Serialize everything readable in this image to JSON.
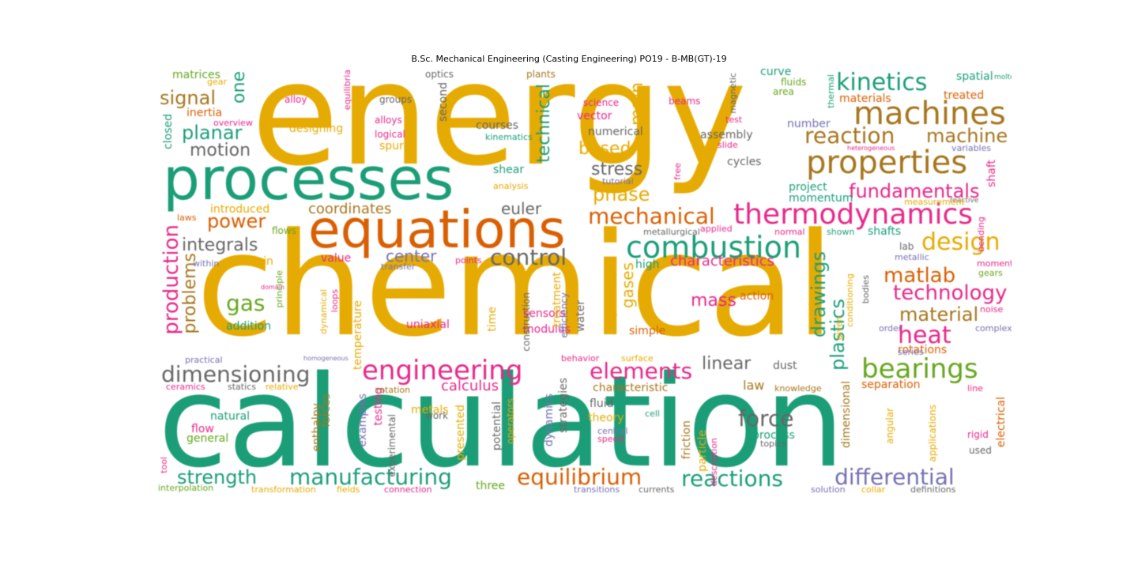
{
  "title": "B.Sc. Mechanical Engineering (Casting Engineering)  PO19 - B-MB(GT)-19",
  "palette": {
    "teal": "#1b9e77",
    "orange": "#d95f02",
    "purple": "#7570b3",
    "pink": "#e7298a",
    "green": "#66a61e",
    "gold": "#e6ab02",
    "brown": "#a6761d",
    "gray": "#666666"
  },
  "words": [
    {
      "text": "energy",
      "color": "#e6ab02"
    },
    {
      "text": "chemical",
      "color": "#e6ab02"
    },
    {
      "text": "calculation",
      "color": "#1b9e77"
    },
    {
      "text": "processes",
      "color": "#1b9e77"
    },
    {
      "text": "equations",
      "color": "#d95f02"
    },
    {
      "text": "machines",
      "color": "#a6761d"
    },
    {
      "text": "properties",
      "color": "#a6761d"
    },
    {
      "text": "kinetics",
      "color": "#1b9e77"
    },
    {
      "text": "thermodynamics",
      "color": "#e7298a"
    },
    {
      "text": "combustion",
      "color": "#1b9e77"
    },
    {
      "text": "reaction",
      "color": "#a6761d"
    },
    {
      "text": "machine",
      "color": "#a6761d"
    },
    {
      "text": "fundamentals",
      "color": "#e7298a"
    },
    {
      "text": "engineering",
      "color": "#e7298a"
    },
    {
      "text": "bearings",
      "color": "#66a61e"
    },
    {
      "text": "differential",
      "color": "#7570b3"
    },
    {
      "text": "equilibrium",
      "color": "#d95f02"
    },
    {
      "text": "manufacturing",
      "color": "#1b9e77"
    },
    {
      "text": "reactions",
      "color": "#1b9e77"
    },
    {
      "text": "design",
      "color": "#e6ab02"
    },
    {
      "text": "matlab",
      "color": "#d95f02"
    },
    {
      "text": "technology",
      "color": "#e7298a"
    },
    {
      "text": "mechanical",
      "color": "#d95f02"
    },
    {
      "text": "production",
      "color": "#e7298a"
    },
    {
      "text": "dimensioning",
      "color": "#666666"
    },
    {
      "text": "elements",
      "color": "#e7298a"
    },
    {
      "text": "heat",
      "color": "#e7298a"
    },
    {
      "text": "material",
      "color": "#a6761d"
    },
    {
      "text": "plastics",
      "color": "#1b9e77"
    },
    {
      "text": "drawings",
      "color": "#1b9e77"
    },
    {
      "text": "control",
      "color": "#666666"
    },
    {
      "text": "strength",
      "color": "#1b9e77"
    },
    {
      "text": "force",
      "color": "#666666"
    },
    {
      "text": "signal",
      "color": "#a6761d"
    },
    {
      "text": "planar",
      "color": "#1b9e77"
    },
    {
      "text": "motion",
      "color": "#666666"
    },
    {
      "text": "phase",
      "color": "#e6ab02"
    },
    {
      "text": "based",
      "color": "#e6ab02"
    },
    {
      "text": "stress",
      "color": "#666666"
    },
    {
      "text": "technical",
      "color": "#1b9e77"
    },
    {
      "text": "main",
      "color": "#e6ab02"
    },
    {
      "text": "gas",
      "color": "#66a61e"
    },
    {
      "text": "power",
      "color": "#d95f02"
    },
    {
      "text": "integrals",
      "color": "#666666"
    },
    {
      "text": "problems",
      "color": "#a6761d"
    },
    {
      "text": "coordinates",
      "color": "#a6761d"
    },
    {
      "text": "euler",
      "color": "#666666"
    },
    {
      "text": "center",
      "color": "#7570b3"
    },
    {
      "text": "mass",
      "color": "#e7298a"
    },
    {
      "text": "gases",
      "color": "#e6ab02"
    },
    {
      "text": "linear",
      "color": "#666666"
    },
    {
      "text": "calculus",
      "color": "#e7298a"
    },
    {
      "text": "characteristics",
      "color": "#e7298a"
    },
    {
      "text": "one",
      "color": "#1b9e77"
    },
    {
      "text": "matrices",
      "color": "#66a61e"
    },
    {
      "text": "inertia",
      "color": "#d95f02"
    },
    {
      "text": "shear",
      "color": "#1b9e77"
    },
    {
      "text": "spur",
      "color": "#e6ab02"
    },
    {
      "text": "courses",
      "color": "#666666"
    },
    {
      "text": "vector",
      "color": "#e7298a"
    },
    {
      "text": "numerical",
      "color": "#666666"
    },
    {
      "text": "assembly",
      "color": "#666666"
    },
    {
      "text": "cycles",
      "color": "#666666"
    },
    {
      "text": "designing",
      "color": "#e6ab02"
    },
    {
      "text": "project",
      "color": "#1b9e77"
    },
    {
      "text": "momentum",
      "color": "#1b9e77"
    },
    {
      "text": "shafts",
      "color": "#1b9e77"
    },
    {
      "text": "shaft",
      "color": "#e7298a"
    },
    {
      "text": "spatial",
      "color": "#1b9e77"
    },
    {
      "text": "treated",
      "color": "#d95f02"
    },
    {
      "text": "materials",
      "color": "#d95f02"
    },
    {
      "text": "curve",
      "color": "#1b9e77"
    },
    {
      "text": "number",
      "color": "#7570b3"
    },
    {
      "text": "fluids",
      "color": "#66a61e"
    },
    {
      "text": "area",
      "color": "#66a61e"
    },
    {
      "text": "uniaxial",
      "color": "#e7298a"
    },
    {
      "text": "modulus",
      "color": "#e7298a"
    },
    {
      "text": "sensors",
      "color": "#e7298a"
    },
    {
      "text": "action",
      "color": "#d95f02"
    },
    {
      "text": "simple",
      "color": "#d95f02"
    },
    {
      "text": "high",
      "color": "#1b9e77"
    },
    {
      "text": "value",
      "color": "#e7298a"
    },
    {
      "text": "strain",
      "color": "#e6ab02"
    },
    {
      "text": "introduced",
      "color": "#e6ab02"
    },
    {
      "text": "addition",
      "color": "#1b9e77"
    },
    {
      "text": "law",
      "color": "#a6761d"
    },
    {
      "text": "dust",
      "color": "#666666"
    },
    {
      "text": "separation",
      "color": "#d95f02"
    },
    {
      "text": "rotations",
      "color": "#d95f02"
    },
    {
      "text": "process",
      "color": "#1b9e77"
    },
    {
      "text": "natural",
      "color": "#1b9e77"
    },
    {
      "text": "flow",
      "color": "#e7298a"
    },
    {
      "text": "general",
      "color": "#66a61e"
    },
    {
      "text": "enthalpy",
      "color": "#a6761d"
    },
    {
      "text": "forces",
      "color": "#a6761d"
    },
    {
      "text": "examples",
      "color": "#7570b3"
    },
    {
      "text": "testing",
      "color": "#e7298a"
    },
    {
      "text": "metals",
      "color": "#e6ab02"
    },
    {
      "text": "presented",
      "color": "#e6ab02"
    },
    {
      "text": "three",
      "color": "#66a61e"
    },
    {
      "text": "fluid",
      "color": "#666666"
    },
    {
      "text": "theory",
      "color": "#e6ab02"
    },
    {
      "text": "characteristic",
      "color": "#a6761d"
    },
    {
      "text": "friction",
      "color": "#a6761d"
    },
    {
      "text": "particle",
      "color": "#e6ab02"
    },
    {
      "text": "dimensional",
      "color": "#a6761d"
    },
    {
      "text": "electrical",
      "color": "#d95f02"
    },
    {
      "text": "rigid",
      "color": "#e7298a"
    },
    {
      "text": "used",
      "color": "#666666"
    },
    {
      "text": "applications",
      "color": "#e6ab02"
    },
    {
      "text": "angular",
      "color": "#e6ab02"
    },
    {
      "text": "dynamics",
      "color": "#7570b3"
    },
    {
      "text": "strategies",
      "color": "#666666"
    },
    {
      "text": "potential",
      "color": "#666666"
    },
    {
      "text": "operators",
      "color": "#e6ab02"
    },
    {
      "text": "experimental",
      "color": "#666666"
    },
    {
      "text": "work",
      "color": "#666666"
    },
    {
      "text": "construction",
      "color": "#666666"
    },
    {
      "text": "time",
      "color": "#e6ab02"
    },
    {
      "text": "water",
      "color": "#666666"
    },
    {
      "text": "temperature",
      "color": "#e6ab02"
    },
    {
      "text": "treatment",
      "color": "#e6ab02"
    },
    {
      "text": "efficiency",
      "color": "#7570b3"
    },
    {
      "text": "closed",
      "color": "#1b9e77"
    },
    {
      "text": "optics",
      "color": "#666666"
    },
    {
      "text": "plants",
      "color": "#a6761d"
    },
    {
      "text": "alloy",
      "color": "#e7298a"
    },
    {
      "text": "alloys",
      "color": "#e7298a"
    },
    {
      "text": "logical",
      "color": "#e7298a"
    },
    {
      "text": "groups",
      "color": "#666666"
    },
    {
      "text": "second",
      "color": "#666666"
    },
    {
      "text": "science",
      "color": "#e7298a"
    },
    {
      "text": "beams",
      "color": "#e7298a"
    },
    {
      "text": "magnetic",
      "color": "#666666"
    },
    {
      "text": "test",
      "color": "#e7298a"
    },
    {
      "text": "slide",
      "color": "#e7298a"
    },
    {
      "text": "free",
      "color": "#e7298a"
    },
    {
      "text": "tutorial",
      "color": "#7570b3"
    },
    {
      "text": "kinematics",
      "color": "#1b9e77"
    },
    {
      "text": "overview",
      "color": "#e7298a"
    },
    {
      "text": "gear",
      "color": "#e6ab02"
    },
    {
      "text": "equilibria",
      "color": "#e7298a"
    },
    {
      "text": "analysis",
      "color": "#e6ab02"
    },
    {
      "text": "thermal",
      "color": "#1b9e77"
    },
    {
      "text": "molten",
      "color": "#1b9e77"
    },
    {
      "text": "heterogeneous",
      "color": "#e7298a"
    },
    {
      "text": "variables",
      "color": "#7570b3"
    },
    {
      "text": "reactive",
      "color": "#666666"
    },
    {
      "text": "measurement",
      "color": "#e6ab02"
    },
    {
      "text": "bending",
      "color": "#e7298a"
    },
    {
      "text": "laws",
      "color": "#d95f02"
    },
    {
      "text": "flows",
      "color": "#66a61e"
    },
    {
      "text": "applied",
      "color": "#e7298a"
    },
    {
      "text": "normal",
      "color": "#e7298a"
    },
    {
      "text": "shown",
      "color": "#1b9e77"
    },
    {
      "text": "metallurgical",
      "color": "#666666"
    },
    {
      "text": "lab",
      "color": "#666666"
    },
    {
      "text": "metallic",
      "color": "#7570b3"
    },
    {
      "text": "moments",
      "color": "#e7298a"
    },
    {
      "text": "gears",
      "color": "#66a61e"
    },
    {
      "text": "noise",
      "color": "#e7298a"
    },
    {
      "text": "complex",
      "color": "#7570b3"
    },
    {
      "text": "order",
      "color": "#7570b3"
    },
    {
      "text": "series",
      "color": "#7570b3"
    },
    {
      "text": "bodies",
      "color": "#666666"
    },
    {
      "text": "conditioning",
      "color": "#e6ab02"
    },
    {
      "text": "given",
      "color": "#e6ab02"
    },
    {
      "text": "within",
      "color": "#7570b3"
    },
    {
      "text": "points",
      "color": "#e7298a"
    },
    {
      "text": "transfer",
      "color": "#7570b3"
    },
    {
      "text": "domain",
      "color": "#e7298a"
    },
    {
      "text": "principle",
      "color": "#66a61e"
    },
    {
      "text": "dynamical",
      "color": "#e6ab02"
    },
    {
      "text": "loops",
      "color": "#e7298a"
    },
    {
      "text": "experiments",
      "color": "#e6ab02"
    },
    {
      "text": "practical",
      "color": "#7570b3"
    },
    {
      "text": "homogeneous",
      "color": "#7570b3"
    },
    {
      "text": "behavior",
      "color": "#e7298a"
    },
    {
      "text": "surface",
      "color": "#e6ab02"
    },
    {
      "text": "ceramics",
      "color": "#e7298a"
    },
    {
      "text": "statics",
      "color": "#666666"
    },
    {
      "text": "relative",
      "color": "#e6ab02"
    },
    {
      "text": "rotation",
      "color": "#a6761d"
    },
    {
      "text": "knowledge",
      "color": "#a6761d"
    },
    {
      "text": "line",
      "color": "#e7298a"
    },
    {
      "text": "cell",
      "color": "#1b9e77"
    },
    {
      "text": "central",
      "color": "#7570b3"
    },
    {
      "text": "speed",
      "color": "#e7298a"
    },
    {
      "text": "description",
      "color": "#e7298a"
    },
    {
      "text": "topics",
      "color": "#666666"
    },
    {
      "text": "tool",
      "color": "#e7298a"
    },
    {
      "text": "interpolation",
      "color": "#66a61e"
    },
    {
      "text": "transformation",
      "color": "#e6ab02"
    },
    {
      "text": "fields",
      "color": "#e6ab02"
    },
    {
      "text": "connection",
      "color": "#e7298a"
    },
    {
      "text": "transitions",
      "color": "#7570b3"
    },
    {
      "text": "currents",
      "color": "#666666"
    },
    {
      "text": "solution",
      "color": "#7570b3"
    },
    {
      "text": "collar",
      "color": "#e6ab02"
    },
    {
      "text": "definitions",
      "color": "#666666"
    }
  ]
}
